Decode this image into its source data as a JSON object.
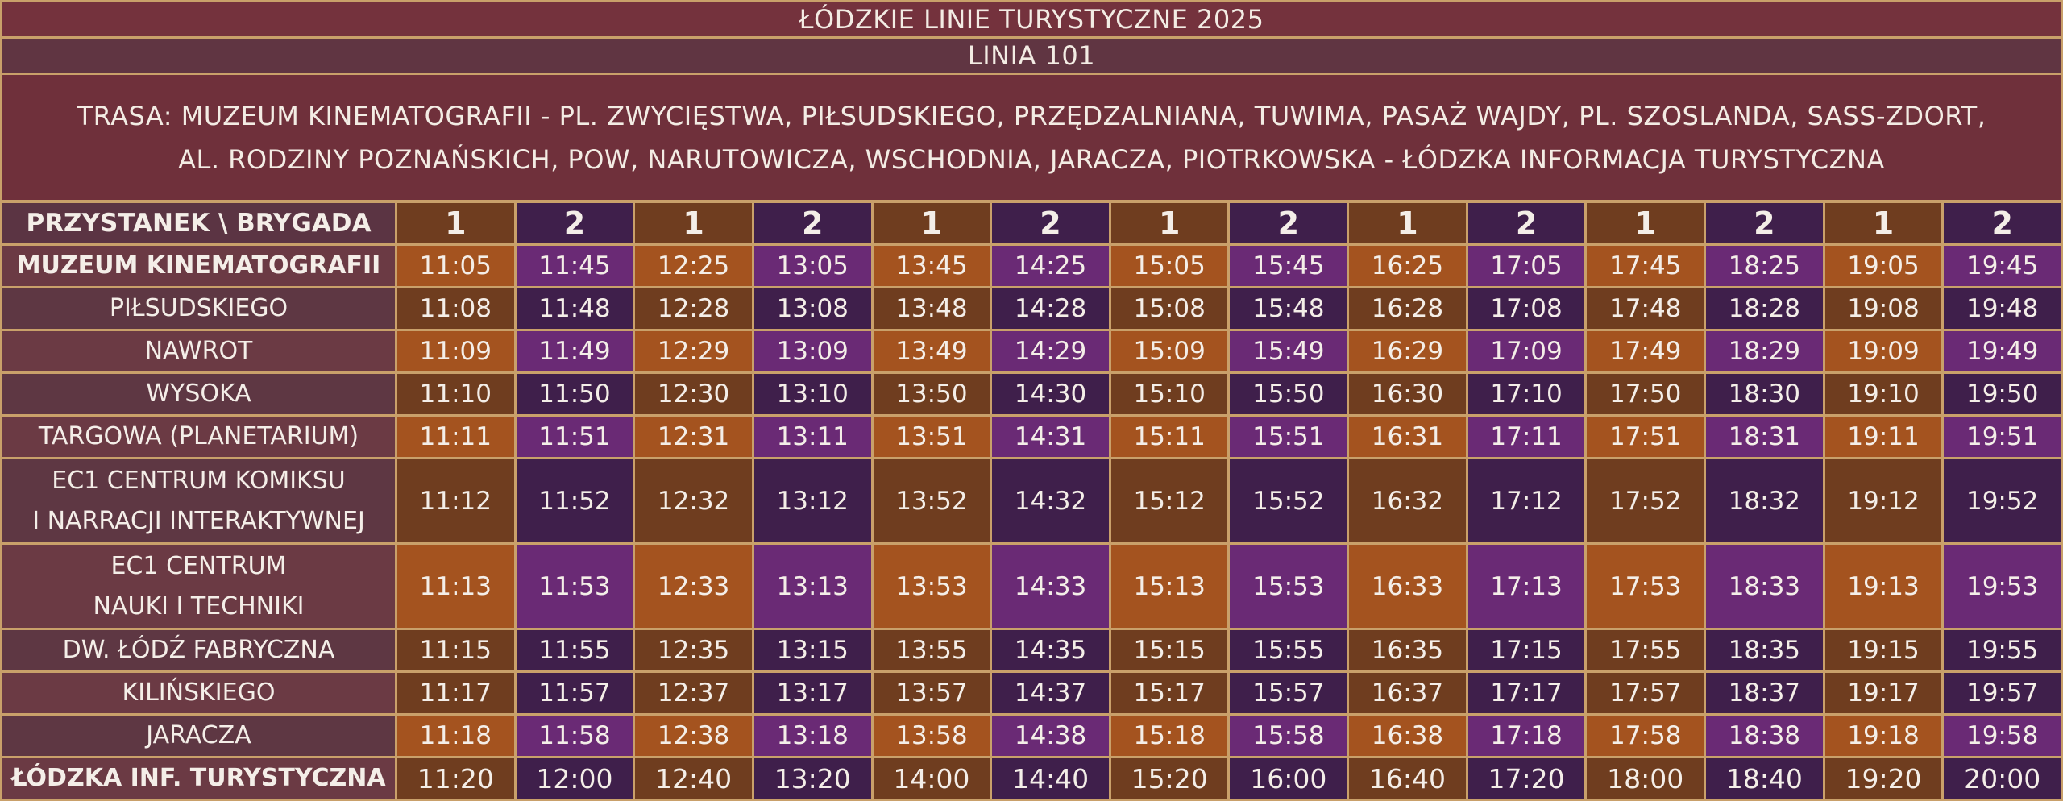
{
  "title": "Łódzkie Linie Turystyczne 2025",
  "line": "Linia 101",
  "route_line1": "Trasa: Muzeum Kinematografii - Pl. Zwycięstwa, Piłsudskiego, Przędzalniana, Tuwima, Pasaż Wajdy, Pl. Szoslanda, Sass-Zdort,",
  "route_line2": "Al. Rodziny Poznańskich, POW, Narutowicza, Wschodnia, Jaracza, Piotrkowska - Łódzka Informacja Turystyczna",
  "header_stop": "Przystanek \\ Brygada",
  "brigades": [
    "1",
    "2",
    "1",
    "2",
    "1",
    "2",
    "1",
    "2",
    "1",
    "2",
    "1",
    "2",
    "1",
    "2"
  ],
  "colors": {
    "orange_dark": "#6f3d1f",
    "orange_light": "#a4531f",
    "purple_dark": "#3f1f4b",
    "purple_light": "#6a2a75",
    "banner": "#74323d",
    "grid": "#c9a06a"
  },
  "stops": [
    {
      "name": "Muzeum Kinematografii",
      "times": [
        "11:05",
        "11:45",
        "12:25",
        "13:05",
        "13:45",
        "14:25",
        "15:05",
        "15:45",
        "16:25",
        "17:05",
        "17:45",
        "18:25",
        "19:05",
        "19:45"
      ]
    },
    {
      "name": "Piłsudskiego",
      "times": [
        "11:08",
        "11:48",
        "12:28",
        "13:08",
        "13:48",
        "14:28",
        "15:08",
        "15:48",
        "16:28",
        "17:08",
        "17:48",
        "18:28",
        "19:08",
        "19:48"
      ]
    },
    {
      "name": "Nawrot",
      "times": [
        "11:09",
        "11:49",
        "12:29",
        "13:09",
        "13:49",
        "14:29",
        "15:09",
        "15:49",
        "16:29",
        "17:09",
        "17:49",
        "18:29",
        "19:09",
        "19:49"
      ]
    },
    {
      "name": "Wysoka",
      "times": [
        "11:10",
        "11:50",
        "12:30",
        "13:10",
        "13:50",
        "14:30",
        "15:10",
        "15:50",
        "16:30",
        "17:10",
        "17:50",
        "18:30",
        "19:10",
        "19:50"
      ]
    },
    {
      "name": "Targowa (Planetarium)",
      "times": [
        "11:11",
        "11:51",
        "12:31",
        "13:11",
        "13:51",
        "14:31",
        "15:11",
        "15:51",
        "16:31",
        "17:11",
        "17:51",
        "18:31",
        "19:11",
        "19:51"
      ]
    },
    {
      "name_line1": "EC1 Centrum Komiksu",
      "name_line2": "i Narracji Interaktywnej",
      "times": [
        "11:12",
        "11:52",
        "12:32",
        "13:12",
        "13:52",
        "14:32",
        "15:12",
        "15:52",
        "16:32",
        "17:12",
        "17:52",
        "18:32",
        "19:12",
        "19:52"
      ]
    },
    {
      "name_line1": "EC1 Centrum",
      "name_line2": "Nauki i Techniki",
      "times": [
        "11:13",
        "11:53",
        "12:33",
        "13:13",
        "13:53",
        "14:33",
        "15:13",
        "15:53",
        "16:33",
        "17:13",
        "17:53",
        "18:33",
        "19:13",
        "19:53"
      ]
    },
    {
      "name": "Dw. Łódź Fabryczna",
      "times": [
        "11:15",
        "11:55",
        "12:35",
        "13:15",
        "13:55",
        "14:35",
        "15:15",
        "15:55",
        "16:35",
        "17:15",
        "17:55",
        "18:35",
        "19:15",
        "19:55"
      ]
    },
    {
      "name": "Kilińskiego",
      "times": [
        "11:17",
        "11:57",
        "12:37",
        "13:17",
        "13:57",
        "14:37",
        "15:17",
        "15:57",
        "16:37",
        "17:17",
        "17:57",
        "18:37",
        "19:17",
        "19:57"
      ]
    },
    {
      "name": "Jaracza",
      "times": [
        "11:18",
        "11:58",
        "12:38",
        "13:18",
        "13:58",
        "14:38",
        "15:18",
        "15:58",
        "16:38",
        "17:18",
        "17:58",
        "18:38",
        "19:18",
        "19:58"
      ]
    },
    {
      "name": "Łódzka Inf. Turystyczna",
      "times": [
        "11:20",
        "12:00",
        "12:40",
        "13:20",
        "14:00",
        "14:40",
        "15:20",
        "16:00",
        "16:40",
        "17:20",
        "18:00",
        "18:40",
        "19:20",
        "20:00"
      ]
    }
  ]
}
